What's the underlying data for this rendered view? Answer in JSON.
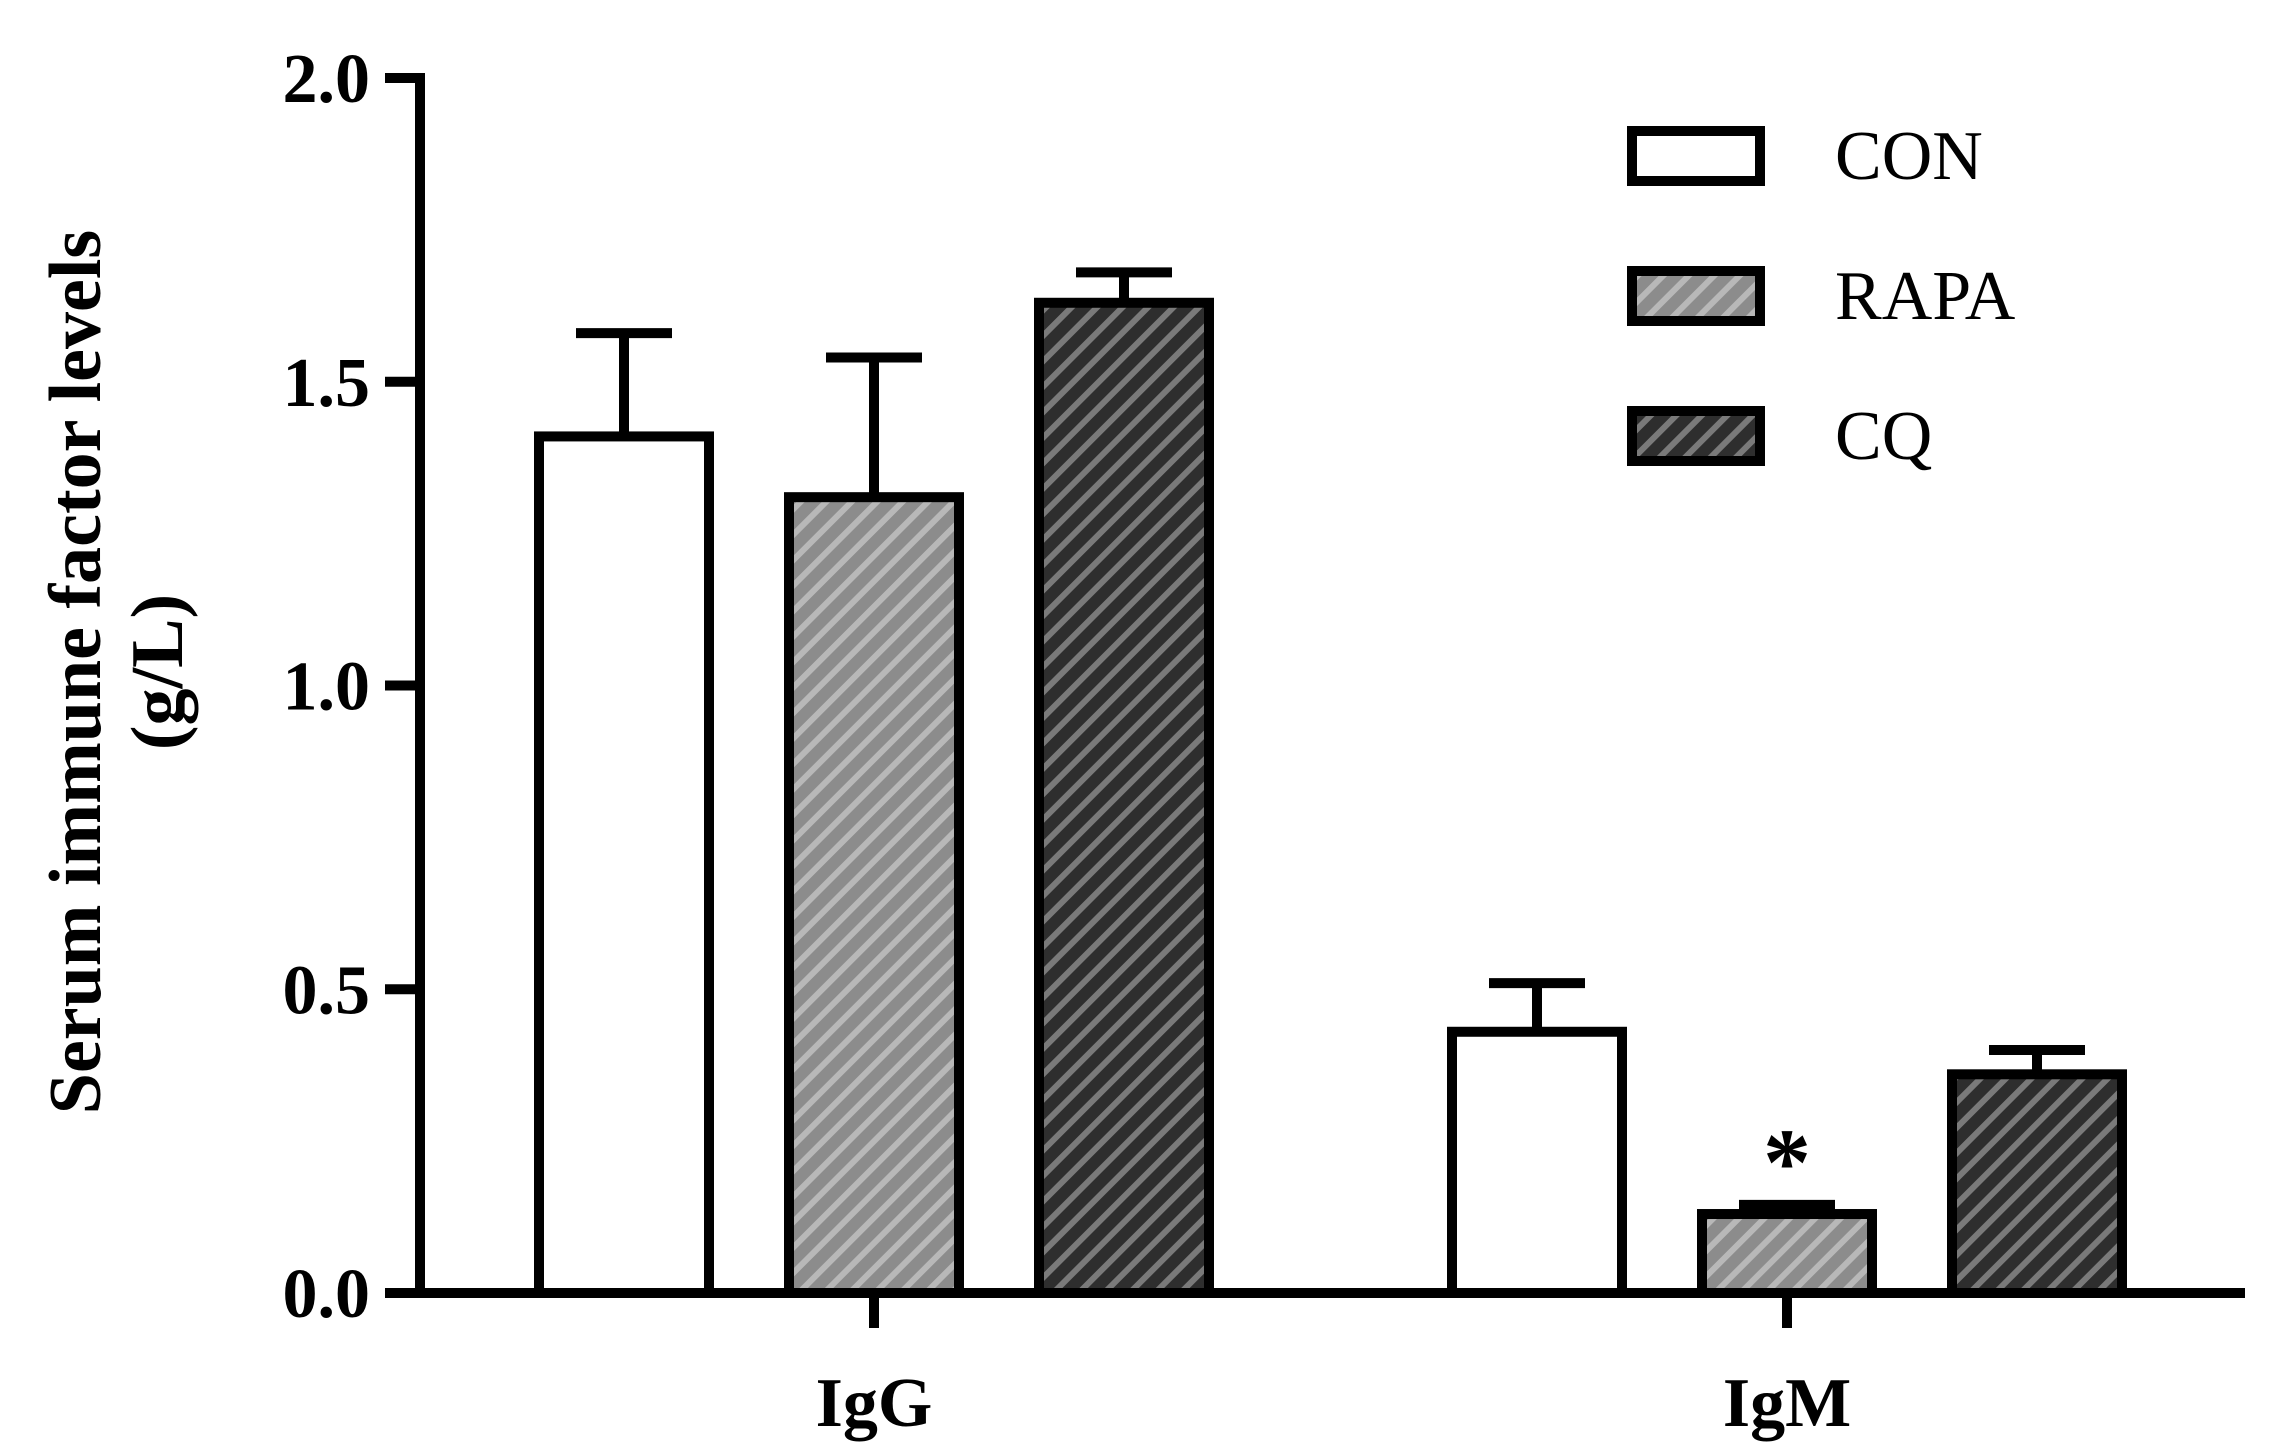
{
  "chart_data": {
    "type": "bar",
    "categories": [
      "IgG",
      "IgM"
    ],
    "series": [
      {
        "name": "CON",
        "values": [
          1.41,
          0.43
        ],
        "errors": [
          0.17,
          0.08
        ],
        "fill": "#ffffff",
        "pattern": "none"
      },
      {
        "name": "RAPA",
        "values": [
          1.31,
          0.13
        ],
        "errors": [
          0.23,
          0.015
        ],
        "fill": "#8c8c8c",
        "pattern": "stripe-light"
      },
      {
        "name": "CQ",
        "values": [
          1.63,
          0.36
        ],
        "errors": [
          0.05,
          0.04
        ],
        "fill": "#333333",
        "pattern": "stripe-dark"
      }
    ],
    "ylabel_line1": "Serum immune factor levels",
    "ylabel_line2": "(g/L)",
    "xlabel": "",
    "ylim": [
      0,
      2.0
    ],
    "yticks": [
      "0.0",
      "0.5",
      "1.0",
      "1.5",
      "2.0"
    ],
    "annotations": [
      {
        "category": "IgM",
        "series": "RAPA",
        "text": "*"
      }
    ],
    "legend_position": "top-right",
    "grid": false
  }
}
